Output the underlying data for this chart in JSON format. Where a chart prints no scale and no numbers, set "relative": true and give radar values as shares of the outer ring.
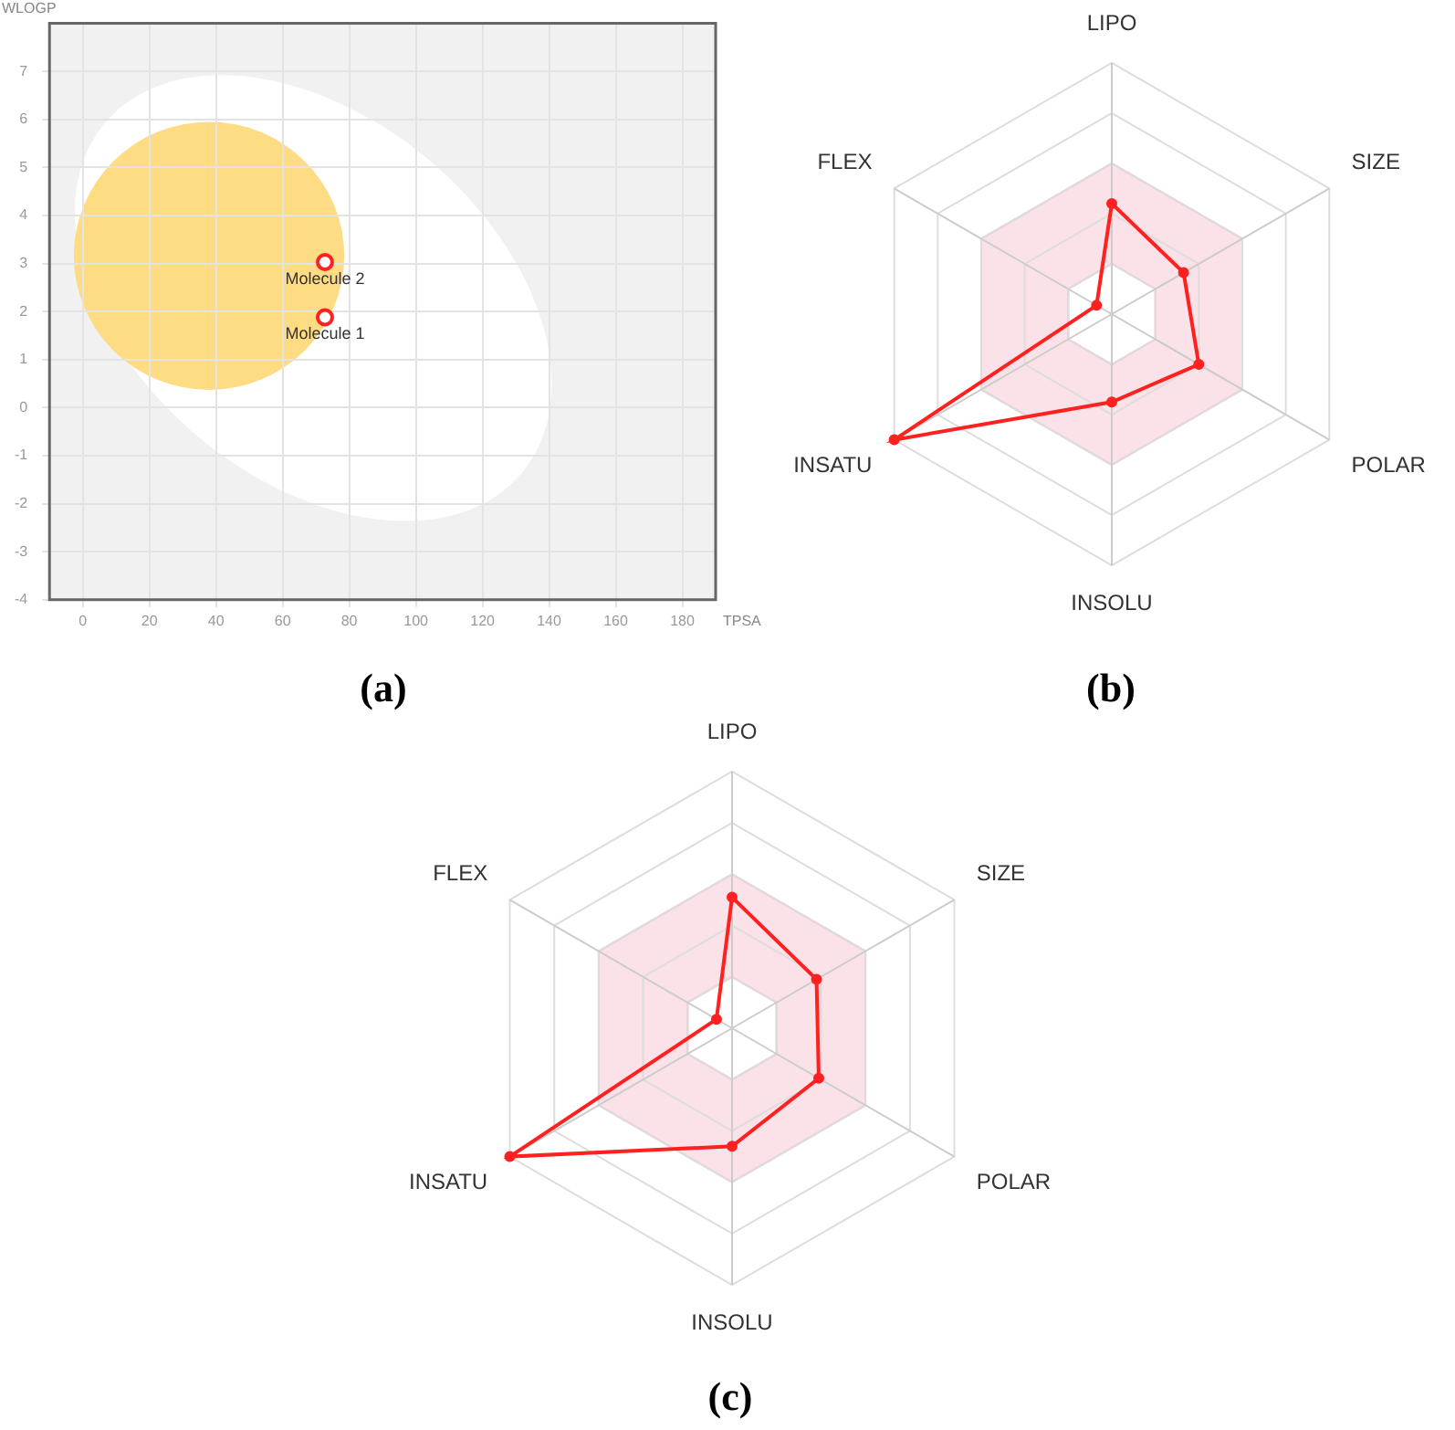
{
  "chart_data": [
    {
      "type": "scatter",
      "title": "(a)",
      "xlabel": "TPSA",
      "ylabel": "WLOGP",
      "xlim": [
        -10,
        190
      ],
      "xticks": [
        0,
        20,
        40,
        60,
        80,
        100,
        120,
        140,
        160,
        180
      ],
      "ylim": [
        -4,
        8
      ],
      "yticks": [
        -4,
        -3,
        -2,
        -1,
        0,
        1,
        2,
        3,
        4,
        5,
        6,
        7
      ],
      "grid": true,
      "legend": false,
      "marker": "circle",
      "series": [
        {
          "name": "Molecule 2",
          "color": "#ff2020",
          "x": [
            72.7
          ],
          "values": [
            3.03
          ]
        },
        {
          "name": "Molecule 1",
          "color": "#ff2020",
          "x": [
            72.7
          ],
          "values": [
            1.88
          ]
        }
      ]
    },
    {
      "type": "radar",
      "title": "(b)",
      "categories": [
        "LIPO",
        "SIZE",
        "POLAR",
        "INSOLU",
        "INSATU",
        "FLEX"
      ],
      "relative": true,
      "grid": true,
      "legend": false,
      "marker": "circle",
      "series": [
        {
          "color": "#ff2020",
          "values": [
            0.44,
            0.33,
            0.4,
            0.35,
            1.0,
            0.07
          ]
        }
      ]
    },
    {
      "type": "radar",
      "title": "(c)",
      "categories": [
        "LIPO",
        "SIZE",
        "POLAR",
        "INSOLU",
        "INSATU",
        "FLEX"
      ],
      "relative": true,
      "grid": true,
      "legend": false,
      "marker": "circle",
      "series": [
        {
          "color": "#ff2020",
          "values": [
            0.51,
            0.38,
            0.39,
            0.46,
            1.0,
            0.07
          ]
        }
      ]
    }
  ]
}
